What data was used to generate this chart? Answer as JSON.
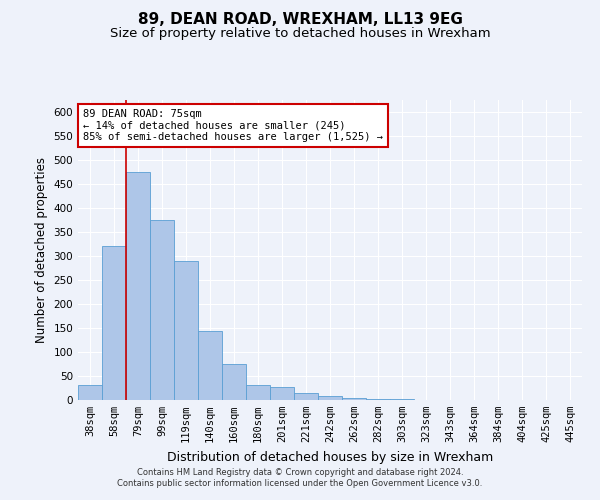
{
  "title": "89, DEAN ROAD, WREXHAM, LL13 9EG",
  "subtitle": "Size of property relative to detached houses in Wrexham",
  "xlabel": "Distribution of detached houses by size in Wrexham",
  "ylabel": "Number of detached properties",
  "categories": [
    "38sqm",
    "58sqm",
    "79sqm",
    "99sqm",
    "119sqm",
    "140sqm",
    "160sqm",
    "180sqm",
    "201sqm",
    "221sqm",
    "242sqm",
    "262sqm",
    "282sqm",
    "303sqm",
    "323sqm",
    "343sqm",
    "364sqm",
    "384sqm",
    "404sqm",
    "425sqm",
    "445sqm"
  ],
  "values": [
    32,
    320,
    475,
    375,
    290,
    143,
    75,
    32,
    28,
    15,
    8,
    4,
    2,
    2,
    1,
    1,
    0,
    0,
    0,
    0,
    1
  ],
  "bar_color": "#aec6e8",
  "bar_edge_color": "#5a9fd4",
  "annotation_text_line1": "89 DEAN ROAD: 75sqm",
  "annotation_text_line2": "← 14% of detached houses are smaller (245)",
  "annotation_text_line3": "85% of semi-detached houses are larger (1,525) →",
  "annotation_box_color": "#ffffff",
  "annotation_box_edge_color": "#cc0000",
  "ylim": [
    0,
    625
  ],
  "yticks": [
    0,
    50,
    100,
    150,
    200,
    250,
    300,
    350,
    400,
    450,
    500,
    550,
    600
  ],
  "footer_line1": "Contains HM Land Registry data © Crown copyright and database right 2024.",
  "footer_line2": "Contains public sector information licensed under the Open Government Licence v3.0.",
  "bg_color": "#eef2fa",
  "grid_color": "#ffffff",
  "title_fontsize": 11,
  "subtitle_fontsize": 9.5,
  "tick_fontsize": 7.5,
  "ylabel_fontsize": 8.5,
  "xlabel_fontsize": 9
}
